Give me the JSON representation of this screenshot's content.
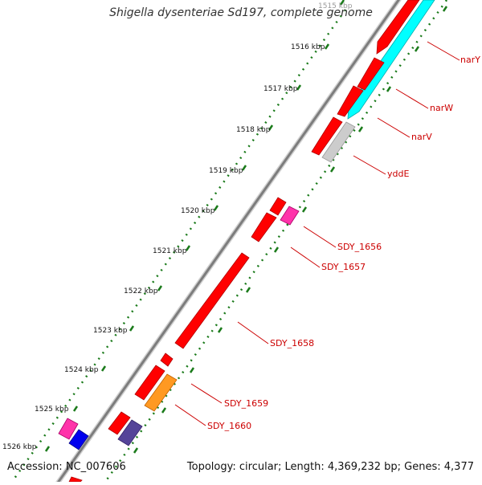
{
  "title": "Shigella dysenteriae Sd197, complete genome",
  "footer": {
    "accession": "Accession: NC_007606",
    "summary": "Topology: circular; Length: 4,369,232 bp; Genes: 4,377"
  },
  "ruler": {
    "unit": "kbp",
    "ticks": [
      {
        "label": "1515 kbp"
      },
      {
        "label": "1516 kbp"
      },
      {
        "label": "1517 kbp"
      },
      {
        "label": "1518 kbp"
      },
      {
        "label": "1519 kbp"
      },
      {
        "label": "1520 kbp"
      },
      {
        "label": "1521 kbp"
      },
      {
        "label": "1522 kbp"
      },
      {
        "label": "1523 kbp"
      },
      {
        "label": "1524 kbp"
      },
      {
        "label": "1525 kbp"
      },
      {
        "label": "1526 kbp"
      }
    ]
  },
  "gene_labels": [
    {
      "name": "narY"
    },
    {
      "name": "narW"
    },
    {
      "name": "narV"
    },
    {
      "name": "yddE"
    },
    {
      "name": "SDY_1656"
    },
    {
      "name": "SDY_1657"
    },
    {
      "name": "SDY_1658"
    },
    {
      "name": "SDY_1659"
    },
    {
      "name": "SDY_1660"
    }
  ],
  "colors": {
    "cds": "#ff0000",
    "cyan_feature": "#00ffff",
    "gray_feature": "#cccccc",
    "magenta_feature": "#ff33aa",
    "orange_feature": "#ff9922",
    "purple_feature": "#554499",
    "blue_feature": "#0000ee",
    "label_red": "#cc0000",
    "tick_green": "#1a7a1a",
    "backbone": "#8a8a8a"
  }
}
